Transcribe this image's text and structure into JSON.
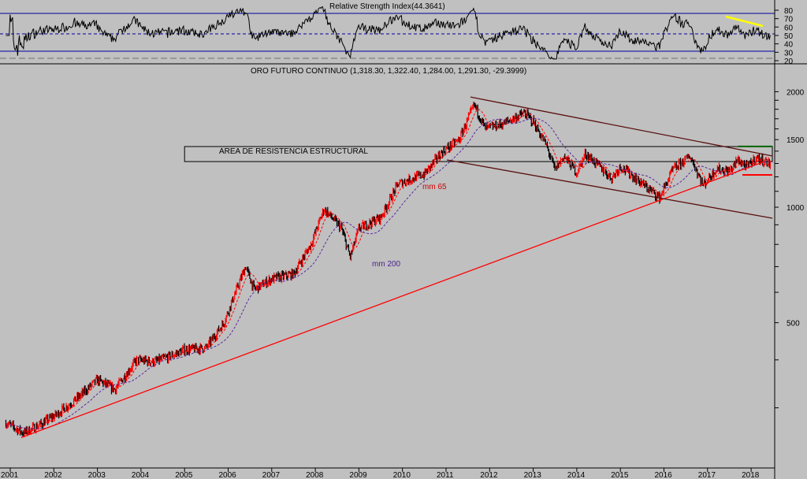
{
  "chart_data": [
    {
      "type": "line",
      "title": "Relative Strength Index(44.3641)",
      "y_ticks": [
        80,
        70,
        60,
        50,
        40,
        30,
        20
      ],
      "reference_levels": [
        70,
        50,
        30
      ],
      "ylim": [
        20,
        85
      ],
      "annotation": "yellow divergence line 2017.7-2018.4 (RSI 72 to 60)"
    },
    {
      "type": "candlestick",
      "title": "ORO FUTURO CONTINUO (1,318.30, 1,322.40, 1,284.00, 1,291.30, -29.3999)",
      "y_scale": "log",
      "y_ticks": [
        2000,
        1500,
        1000,
        500
      ],
      "x_ticks": [
        "2001",
        "2002",
        "2003",
        "2004",
        "2005",
        "2006",
        "2007",
        "2008",
        "2009",
        "2010",
        "2011",
        "2012",
        "2013",
        "2014",
        "2015",
        "2016",
        "2017",
        "2018"
      ],
      "series_points": [
        [
          2001.0,
          270
        ],
        [
          2001.3,
          258
        ],
        [
          2001.6,
          268
        ],
        [
          2002.0,
          285
        ],
        [
          2002.5,
          315
        ],
        [
          2003.0,
          355
        ],
        [
          2003.4,
          335
        ],
        [
          2003.9,
          400
        ],
        [
          2004.3,
          395
        ],
        [
          2004.7,
          410
        ],
        [
          2005.0,
          425
        ],
        [
          2005.5,
          430
        ],
        [
          2005.9,
          500
        ],
        [
          2006.4,
          700
        ],
        [
          2006.6,
          610
        ],
        [
          2007.0,
          650
        ],
        [
          2007.5,
          670
        ],
        [
          2007.9,
          800
        ],
        [
          2008.2,
          990
        ],
        [
          2008.6,
          880
        ],
        [
          2008.8,
          740
        ],
        [
          2009.0,
          880
        ],
        [
          2009.5,
          940
        ],
        [
          2009.9,
          1150
        ],
        [
          2010.5,
          1220
        ],
        [
          2010.9,
          1390
        ],
        [
          2011.3,
          1500
        ],
        [
          2011.65,
          1850
        ],
        [
          2011.9,
          1600
        ],
        [
          2012.3,
          1650
        ],
        [
          2012.8,
          1760
        ],
        [
          2013.0,
          1670
        ],
        [
          2013.3,
          1450
        ],
        [
          2013.5,
          1250
        ],
        [
          2013.7,
          1360
        ],
        [
          2014.0,
          1230
        ],
        [
          2014.2,
          1380
        ],
        [
          2014.8,
          1190
        ],
        [
          2015.0,
          1280
        ],
        [
          2015.5,
          1150
        ],
        [
          2015.9,
          1060
        ],
        [
          2016.2,
          1250
        ],
        [
          2016.6,
          1360
        ],
        [
          2016.9,
          1140
        ],
        [
          2017.2,
          1260
        ],
        [
          2017.5,
          1240
        ],
        [
          2017.7,
          1330
        ],
        [
          2017.9,
          1270
        ],
        [
          2018.1,
          1345
        ],
        [
          2018.3,
          1320
        ],
        [
          2018.45,
          1291
        ]
      ],
      "moving_averages": [
        {
          "name": "mm 65",
          "color": "#ff0000",
          "period": 65
        },
        {
          "name": "mm 200",
          "color": "#5a2aa0",
          "period": 200
        }
      ],
      "trendlines": [
        {
          "name": "support",
          "color": "#ff0000",
          "from": [
            2001.25,
            251
          ],
          "to": [
            2018.3,
            1315
          ]
        },
        {
          "name": "channel-upper",
          "color": "#5a1010",
          "from": [
            2011.56,
            1937
          ],
          "to": [
            2018.49,
            1360
          ]
        },
        {
          "name": "channel-lower",
          "color": "#5a1010",
          "from": [
            2011.02,
            1328
          ],
          "to": [
            2018.49,
            936
          ]
        }
      ],
      "resistance_zone": {
        "label": "AREA DE RESISTENCIA ESTRUCTURAL",
        "top": 1439,
        "bottom": 1315,
        "from": 2005.0
      },
      "levels": [
        {
          "color": "#006400",
          "price": 1440,
          "from": 2017.7
        },
        {
          "color": "#ff0000",
          "price": 1214,
          "from": 2017.8
        }
      ]
    }
  ]
}
